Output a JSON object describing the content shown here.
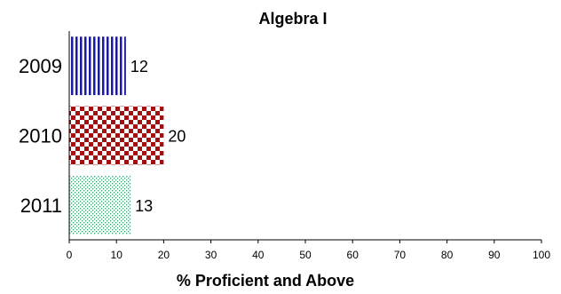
{
  "chart_data": {
    "type": "bar",
    "orientation": "horizontal",
    "title": "Algebra I",
    "xlabel": "% Proficient and Above",
    "ylabel": "",
    "categories": [
      "2009",
      "2010",
      "2011"
    ],
    "values": [
      12,
      20,
      13
    ],
    "xlim": [
      0,
      100
    ],
    "xticks": [
      0,
      10,
      20,
      30,
      40,
      50,
      60,
      70,
      80,
      90,
      100
    ],
    "grid": false,
    "legend": "none",
    "bar_styles": [
      {
        "pattern": "vertical-stripes",
        "color": "#1a1aa0"
      },
      {
        "pattern": "checkerboard",
        "color": "#a01010"
      },
      {
        "pattern": "dots",
        "color": "#2aa06a"
      }
    ]
  }
}
